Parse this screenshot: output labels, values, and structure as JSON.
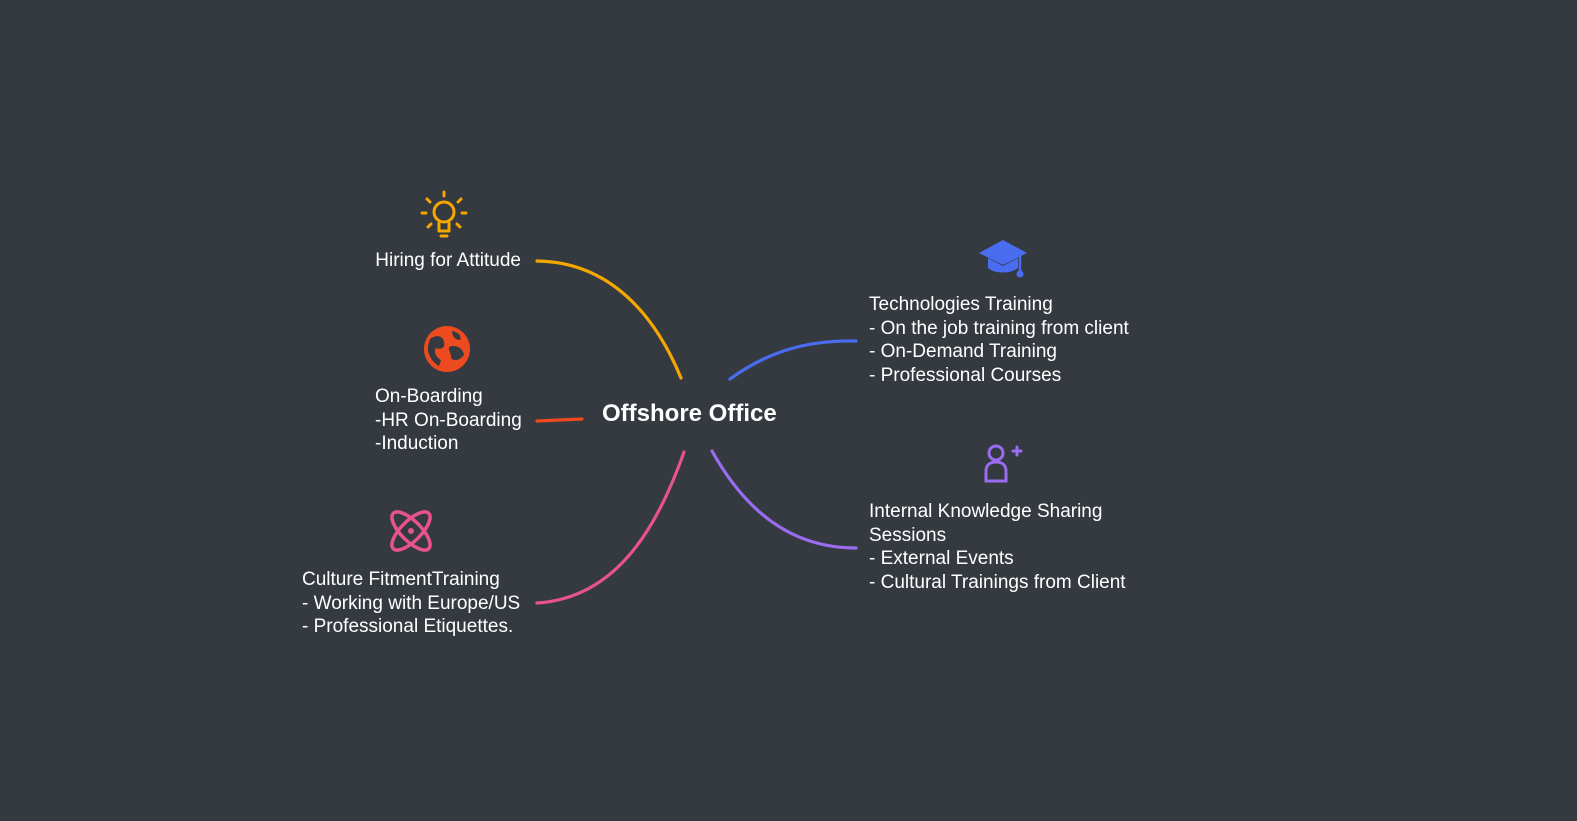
{
  "center": {
    "title": "Offshore Office"
  },
  "colors": {
    "background": "#343a40",
    "orange": "#f5a700",
    "red": "#ee4a20",
    "pink": "#e8548a",
    "blue": "#4a6cf0",
    "purple": "#9a6cf0"
  },
  "branches": {
    "hiring": {
      "icon": "lightbulb-icon",
      "lines": [
        "Hiring for Attitude"
      ]
    },
    "onboarding": {
      "icon": "globe-icon",
      "lines": [
        "On-Boarding",
        "-HR On-Boarding",
        "-Induction"
      ]
    },
    "culture": {
      "icon": "atom-icon",
      "lines": [
        "Culture FitmentTraining",
        "- Working with Europe/US",
        "- Professional Etiquettes."
      ]
    },
    "technologies": {
      "icon": "graduation-cap-icon",
      "lines": [
        "Technologies Training",
        "- On the job training from client",
        "- On-Demand Training",
        "- Professional Courses"
      ]
    },
    "knowledge": {
      "icon": "add-user-icon",
      "lines": [
        "Internal Knowledge Sharing",
        "Sessions",
        "- External Events",
        "- Cultural Trainings from Client"
      ]
    }
  }
}
